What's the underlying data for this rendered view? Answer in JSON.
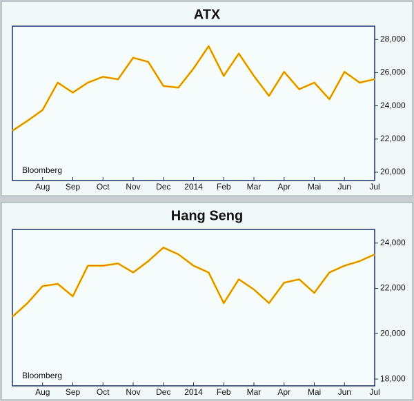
{
  "chart_data": [
    {
      "type": "line",
      "title": "ATX",
      "annotation": "Bloomberg",
      "x": [
        0,
        0.5,
        1,
        1.5,
        2,
        2.5,
        3,
        3.5,
        4,
        4.5,
        5,
        5.5,
        6,
        6.5,
        7,
        7.5,
        8,
        8.5,
        9,
        9.5,
        10,
        10.5,
        11,
        11.5,
        12
      ],
      "series": [
        {
          "name": "ATX",
          "color": "#e07b00",
          "values": [
            22500,
            23100,
            23750,
            25400,
            24800,
            25400,
            25750,
            25600,
            26900,
            26650,
            25200,
            25100,
            26250,
            27600,
            25800,
            27150,
            25800,
            24600,
            26050,
            25000,
            25400,
            24400,
            26050,
            25400,
            25600
          ]
        }
      ],
      "xlim": [
        0,
        12
      ],
      "xticks": [
        {
          "value": 1,
          "label": "Aug"
        },
        {
          "value": 2,
          "label": "Sep"
        },
        {
          "value": 3,
          "label": "Oct"
        },
        {
          "value": 4,
          "label": "Nov"
        },
        {
          "value": 5,
          "label": "Dec"
        },
        {
          "value": 6,
          "label": "2014"
        },
        {
          "value": 7,
          "label": "Feb"
        },
        {
          "value": 8,
          "label": "Mar"
        },
        {
          "value": 9,
          "label": "Apr"
        },
        {
          "value": 10,
          "label": "Mai"
        },
        {
          "value": 11,
          "label": "Jun"
        },
        {
          "value": 12,
          "label": "Jul"
        }
      ],
      "ylim": [
        19500,
        28800
      ],
      "yticks": [
        {
          "value": 20000,
          "label": "20,000"
        },
        {
          "value": 22000,
          "label": "22,000"
        },
        {
          "value": 24000,
          "label": "24,000"
        },
        {
          "value": 26000,
          "label": "26,000"
        },
        {
          "value": 28000,
          "label": "28,000"
        }
      ]
    },
    {
      "type": "line",
      "title": "Hang Seng",
      "annotation": "Bloomberg",
      "x": [
        0,
        0.5,
        1,
        1.5,
        2,
        2.5,
        3,
        3.5,
        4,
        4.5,
        5,
        5.5,
        6,
        6.5,
        7,
        7.5,
        8,
        8.5,
        9,
        9.5,
        10,
        10.5,
        11,
        11.5,
        12
      ],
      "series": [
        {
          "name": "Hang Seng",
          "color": "#e07b00",
          "values": [
            20750,
            21350,
            22100,
            22200,
            21650,
            23000,
            23000,
            23100,
            22700,
            23200,
            23800,
            23500,
            23000,
            22700,
            21350,
            22400,
            21950,
            21350,
            22250,
            22400,
            21800,
            22700,
            23000,
            23200,
            23500
          ]
        }
      ],
      "xlim": [
        0,
        12
      ],
      "xticks": [
        {
          "value": 1,
          "label": "Aug"
        },
        {
          "value": 2,
          "label": "Sep"
        },
        {
          "value": 3,
          "label": "Oct"
        },
        {
          "value": 4,
          "label": "Nov"
        },
        {
          "value": 5,
          "label": "Dec"
        },
        {
          "value": 6,
          "label": "2014"
        },
        {
          "value": 7,
          "label": "Feb"
        },
        {
          "value": 8,
          "label": "Mar"
        },
        {
          "value": 9,
          "label": "Apr"
        },
        {
          "value": 10,
          "label": "Mai"
        },
        {
          "value": 11,
          "label": "Jun"
        },
        {
          "value": 12,
          "label": "Jul"
        }
      ],
      "ylim": [
        17700,
        24600
      ],
      "yticks": [
        {
          "value": 18000,
          "label": "18,000"
        },
        {
          "value": 20000,
          "label": "20,000"
        },
        {
          "value": 22000,
          "label": "22,000"
        },
        {
          "value": 24000,
          "label": "24,000"
        }
      ]
    }
  ]
}
